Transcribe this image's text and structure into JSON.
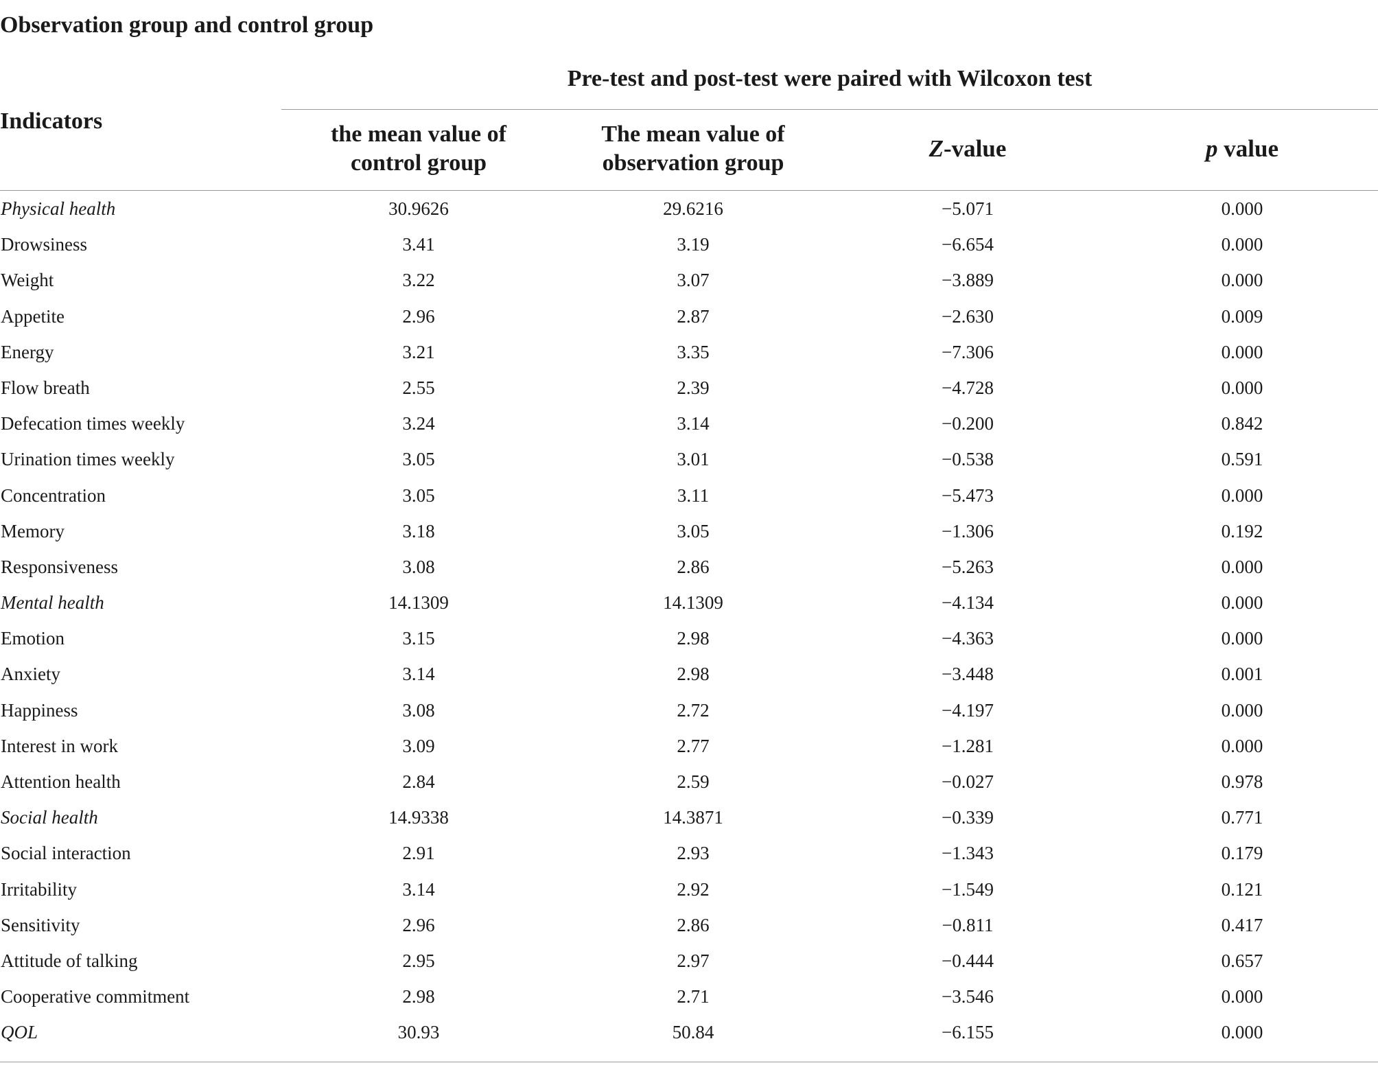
{
  "title": "Observation group and control group",
  "group_header": "Pre-test and post-test were paired with Wilcoxon test",
  "headers": {
    "indicators": "Indicators",
    "control_line1": "the mean value of",
    "control_line2": "control group",
    "observation_line1": "The mean value of",
    "observation_line2": "observation group",
    "z_letter": "Z",
    "z_rest": "-value",
    "p_letter": "p",
    "p_rest": " value"
  },
  "rows": [
    {
      "indicator": "Physical health",
      "italic": true,
      "control": "30.9626",
      "observation": "29.6216",
      "z": "−5.071",
      "p": "0.000"
    },
    {
      "indicator": "Drowsiness",
      "italic": false,
      "control": "3.41",
      "observation": "3.19",
      "z": "−6.654",
      "p": "0.000"
    },
    {
      "indicator": "Weight",
      "italic": false,
      "control": "3.22",
      "observation": "3.07",
      "z": "−3.889",
      "p": "0.000"
    },
    {
      "indicator": "Appetite",
      "italic": false,
      "control": "2.96",
      "observation": "2.87",
      "z": "−2.630",
      "p": "0.009"
    },
    {
      "indicator": "Energy",
      "italic": false,
      "control": "3.21",
      "observation": "3.35",
      "z": "−7.306",
      "p": "0.000"
    },
    {
      "indicator": "Flow breath",
      "italic": false,
      "control": "2.55",
      "observation": "2.39",
      "z": "−4.728",
      "p": "0.000"
    },
    {
      "indicator": "Defecation times weekly",
      "italic": false,
      "control": "3.24",
      "observation": "3.14",
      "z": "−0.200",
      "p": "0.842"
    },
    {
      "indicator": "Urination times weekly",
      "italic": false,
      "control": "3.05",
      "observation": "3.01",
      "z": "−0.538",
      "p": "0.591"
    },
    {
      "indicator": "Concentration",
      "italic": false,
      "control": "3.05",
      "observation": "3.11",
      "z": "−5.473",
      "p": "0.000"
    },
    {
      "indicator": "Memory",
      "italic": false,
      "control": "3.18",
      "observation": "3.05",
      "z": "−1.306",
      "p": "0.192"
    },
    {
      "indicator": "Responsiveness",
      "italic": false,
      "control": "3.08",
      "observation": "2.86",
      "z": "−5.263",
      "p": "0.000"
    },
    {
      "indicator": "Mental health",
      "italic": true,
      "control": "14.1309",
      "observation": "14.1309",
      "z": "−4.134",
      "p": "0.000"
    },
    {
      "indicator": "Emotion",
      "italic": false,
      "control": "3.15",
      "observation": "2.98",
      "z": "−4.363",
      "p": "0.000"
    },
    {
      "indicator": "Anxiety",
      "italic": false,
      "control": "3.14",
      "observation": "2.98",
      "z": "−3.448",
      "p": "0.001"
    },
    {
      "indicator": "Happiness",
      "italic": false,
      "control": "3.08",
      "observation": "2.72",
      "z": "−4.197",
      "p": "0.000"
    },
    {
      "indicator": "Interest in work",
      "italic": false,
      "control": "3.09",
      "observation": "2.77",
      "z": "−1.281",
      "p": "0.000"
    },
    {
      "indicator": "Attention health",
      "italic": false,
      "control": "2.84",
      "observation": "2.59",
      "z": "−0.027",
      "p": "0.978"
    },
    {
      "indicator": "Social health",
      "italic": true,
      "control": "14.9338",
      "observation": "14.3871",
      "z": "−0.339",
      "p": "0.771"
    },
    {
      "indicator": "Social interaction",
      "italic": false,
      "control": "2.91",
      "observation": "2.93",
      "z": "−1.343",
      "p": "0.179"
    },
    {
      "indicator": "Irritability",
      "italic": false,
      "control": "3.14",
      "observation": "2.92",
      "z": "−1.549",
      "p": "0.121"
    },
    {
      "indicator": "Sensitivity",
      "italic": false,
      "control": "2.96",
      "observation": "2.86",
      "z": "−0.811",
      "p": "0.417"
    },
    {
      "indicator": "Attitude of talking",
      "italic": false,
      "control": "2.95",
      "observation": "2.97",
      "z": "−0.444",
      "p": "0.657"
    },
    {
      "indicator": "Cooperative commitment",
      "italic": false,
      "control": "2.98",
      "observation": "2.71",
      "z": "−3.546",
      "p": "0.000"
    },
    {
      "indicator": "QOL",
      "italic": true,
      "control": "30.93",
      "observation": "50.84",
      "z": "−6.155",
      "p": "0.000"
    }
  ]
}
